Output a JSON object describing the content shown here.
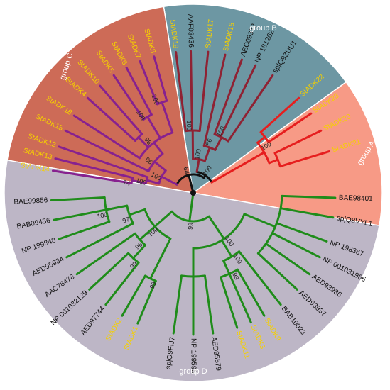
{
  "colors": {
    "group_a": "#f79a86",
    "group_b": "#6d97a3",
    "group_c": "#cd6b57",
    "group_d": "#bdb6c6",
    "branch_a": "#e61e1e",
    "branch_b": "#8f2233",
    "branch_c": "#87218f",
    "branch_d": "#1f8c1a",
    "root": "#111111",
    "label_st": "#f5d000",
    "label_other": "#111111",
    "bootstrap": "#222222"
  },
  "groups": {
    "a": "group A",
    "b": "group B",
    "c": "group C",
    "d": "group D"
  },
  "leaves": {
    "l1": "BAE98401",
    "l2": "sp|Q8VYL1",
    "l3": "NP 198367",
    "l4": "NP 001031966",
    "l5": "AED93936",
    "l6": "AED93937",
    "l7": "BAB10023",
    "l8": "StADK9",
    "l9": "StADK3",
    "l10": "StADK11",
    "l11": "AED95579",
    "l12": "NP 199595",
    "l13": "sp|Q9FIJ7",
    "l14": "StADK1",
    "l15": "StADK2",
    "l16": "AED97744",
    "l17": "NP 001032129",
    "l18": "AAC78478",
    "l19": "AED95934",
    "l20": "NP 199848",
    "l21": "BAB09456",
    "l22": "BAE99856",
    "l23": "StADK14",
    "l24": "StADK13",
    "l25": "StADK12",
    "l26": "StADK15",
    "l27": "StADK18",
    "l28": "StADK4",
    "l29": "StADK10",
    "l30": "StADK5",
    "l31": "StADK6",
    "l32": "StADK7",
    "l33": "StADK8",
    "l34": "StADK19",
    "l35": "AAF03436",
    "l36": "StADK17",
    "l37": "StADK16",
    "l38": "AEC09372",
    "l39": "NP 181262",
    "l40": "sp|Q9ZUU1",
    "l41": "StADK22",
    "l42": "StADK23",
    "l43": "StADK20",
    "l44": "StADK21"
  },
  "bootstrap": {
    "b1": "64",
    "b2": "99",
    "b3": "100",
    "b4": "97",
    "b5": "100",
    "b6": "96",
    "b7": "99",
    "b8": "99",
    "b9": "100",
    "b10": "100",
    "b11": "99",
    "b12": "100",
    "b13": "100",
    "b14": "74",
    "b15": "100",
    "b16": "100",
    "b17": "96",
    "b18": "98",
    "b19": "100",
    "b20": "100",
    "b21": "86",
    "b22": "100",
    "b23": "100",
    "b24": "100",
    "b25": "100"
  }
}
